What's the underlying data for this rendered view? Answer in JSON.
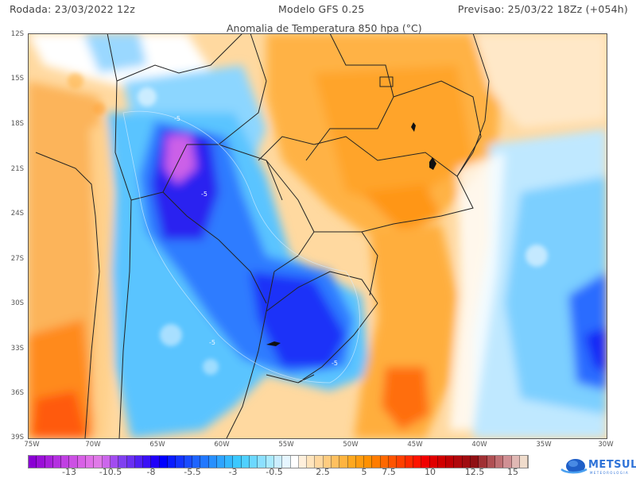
{
  "header": {
    "run": "Rodada: 23/03/2022 12z",
    "model": "Modelo GFS 0.25",
    "forecast": "Previsao: 25/03/22 18Zz (+054h)"
  },
  "map": {
    "title": "Anomalia de Temperatura 850 hpa (°C)",
    "lat_labels": [
      "12S",
      "15S",
      "18S",
      "21S",
      "24S",
      "27S",
      "30S",
      "33S",
      "36S",
      "39S"
    ],
    "lon_labels": [
      "75W",
      "70W",
      "65W",
      "60W",
      "55W",
      "50W",
      "45W",
      "40W",
      "35W",
      "30W"
    ],
    "contour_label": "-5"
  },
  "colorbar": {
    "labels": [
      "-13",
      "-10.5",
      "-8",
      "-5.5",
      "-3",
      "-0.5",
      "2.5",
      "5",
      "7.5",
      "10",
      "12.5",
      "15"
    ],
    "colors": [
      "#8a00d4",
      "#9a10d8",
      "#a820dc",
      "#b430e0",
      "#c040e2",
      "#cc50e4",
      "#d860e6",
      "#e070e8",
      "#e07ae8",
      "#cc66ec",
      "#a24cf0",
      "#8040f0",
      "#6a30f2",
      "#5020f4",
      "#3a10f6",
      "#2000f8",
      "#0000ff",
      "#0a1cff",
      "#1434ff",
      "#1a4cff",
      "#1e64ff",
      "#2278ff",
      "#2890ff",
      "#2ea4ff",
      "#34b8ff",
      "#3cc8ff",
      "#50d0ff",
      "#6cd8ff",
      "#8ce0ff",
      "#aaeaff",
      "#cceeff",
      "#e6f6ff",
      "#ffffff",
      "#fff0dc",
      "#ffe4bc",
      "#ffd8a0",
      "#ffcc80",
      "#ffc060",
      "#ffb440",
      "#ffa820",
      "#ff9c10",
      "#ff9000",
      "#ff7c00",
      "#ff6800",
      "#ff5400",
      "#ff4000",
      "#ff2a00",
      "#ff1400",
      "#f00000",
      "#e00000",
      "#d00000",
      "#c00004",
      "#b0080c",
      "#a00c10",
      "#901014",
      "#a03034",
      "#b05054",
      "#c07074",
      "#d09094",
      "#e0b8b4",
      "#f0dccc"
    ],
    "range": [
      -15,
      15
    ],
    "step": 0.5
  },
  "branding": {
    "logo_text": "METSUL",
    "logo_subtext": "METEOROLOGIA"
  }
}
